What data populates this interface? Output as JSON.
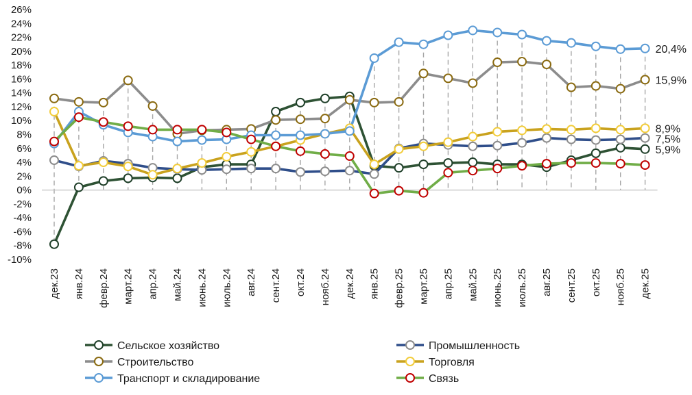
{
  "chart_data": {
    "type": "line",
    "title": "",
    "xlabel": "",
    "ylabel": "",
    "ylim": [
      -10,
      26
    ],
    "ytick_labels": [
      "26%",
      "24%",
      "22%",
      "20%",
      "18%",
      "16%",
      "14%",
      "12%",
      "10%",
      "8%",
      "6%",
      "4%",
      "2%",
      "0%",
      "-2%",
      "-4%",
      "-6%",
      "-8%",
      "-10%"
    ],
    "categories": [
      "дек.23",
      "янв.24",
      "февр.24",
      "март.24",
      "апр.24",
      "май.24",
      "июнь.24",
      "июль.24",
      "авг.24",
      "сент.24",
      "окт.24",
      "нояб.24",
      "дек.24",
      "янв.25",
      "февр.25",
      "март.25",
      "апр.25",
      "май.25",
      "июнь.25",
      "июль.25",
      "авг.25",
      "сент.25",
      "окт.25",
      "нояб.25",
      "дек.25"
    ],
    "series": [
      {
        "name": "Сельское хозяйство",
        "line_color": "#2e5234",
        "marker_edge": "#1f3f29",
        "values": [
          -7.8,
          0.4,
          1.3,
          1.7,
          1.8,
          1.7,
          3.3,
          3.7,
          3.7,
          11.3,
          12.6,
          13.2,
          13.5,
          3.5,
          3.2,
          3.7,
          3.9,
          4.0,
          3.7,
          3.7,
          3.3,
          4.3,
          5.3,
          6.1,
          5.9
        ]
      },
      {
        "name": "Промышленность",
        "line_color": "#2f4e8a",
        "marker_edge": "#8c8c8c",
        "values": [
          4.3,
          3.4,
          4.2,
          3.8,
          3.2,
          3.0,
          2.9,
          3.0,
          3.1,
          3.1,
          2.6,
          2.7,
          2.8,
          2.3,
          6.0,
          6.7,
          6.5,
          6.3,
          6.4,
          6.8,
          7.5,
          7.3,
          7.2,
          7.3,
          7.5
        ]
      },
      {
        "name": "Строительство",
        "line_color": "#8c8c8c",
        "marker_edge": "#8a6a10",
        "values": [
          13.2,
          12.7,
          12.6,
          15.8,
          12.1,
          8.1,
          8.6,
          8.7,
          8.8,
          10.1,
          10.2,
          10.3,
          13.0,
          12.6,
          12.7,
          16.8,
          16.1,
          15.4,
          18.4,
          18.5,
          18.1,
          14.8,
          15.0,
          14.6,
          15.9
        ]
      },
      {
        "name": "Торговля",
        "line_color": "#c9a21e",
        "marker_edge": "#f2cc3a",
        "values": [
          11.3,
          3.5,
          4.0,
          3.4,
          2.2,
          3.1,
          3.9,
          4.8,
          5.5,
          6.3,
          7.2,
          8.1,
          8.9,
          3.7,
          5.9,
          6.3,
          6.9,
          7.7,
          8.4,
          8.6,
          8.8,
          8.7,
          8.9,
          8.7,
          8.9
        ]
      },
      {
        "name": "Транспорт и складирование",
        "line_color": "#5b9bd5",
        "marker_edge": "#5b9bd5",
        "values": [
          6.7,
          11.3,
          9.4,
          8.3,
          7.7,
          7.0,
          7.2,
          7.3,
          7.9,
          7.9,
          7.9,
          8.1,
          8.5,
          19.0,
          21.3,
          21.0,
          22.3,
          23.0,
          22.7,
          22.4,
          21.5,
          21.2,
          20.7,
          20.3,
          20.4
        ]
      },
      {
        "name": "Связь",
        "line_color": "#70ad47",
        "marker_edge": "#c00000",
        "values": [
          7.0,
          10.5,
          9.8,
          9.2,
          8.7,
          8.7,
          8.7,
          8.3,
          7.3,
          6.3,
          5.6,
          5.2,
          4.9,
          -0.5,
          -0.1,
          -0.4,
          2.5,
          2.8,
          3.1,
          3.5,
          3.8,
          3.9,
          3.9,
          3.8,
          3.6
        ]
      }
    ],
    "end_labels": [
      {
        "text": "20,4%",
        "value": 20.4
      },
      {
        "text": "15,9%",
        "value": 15.9
      },
      {
        "text": "8,9%",
        "value": 8.9
      },
      {
        "text": "7,5%",
        "value": 7.5
      },
      {
        "text": "5,9%",
        "value": 5.9
      }
    ],
    "gridlines": "vertical dashed",
    "legend_position": "bottom"
  }
}
